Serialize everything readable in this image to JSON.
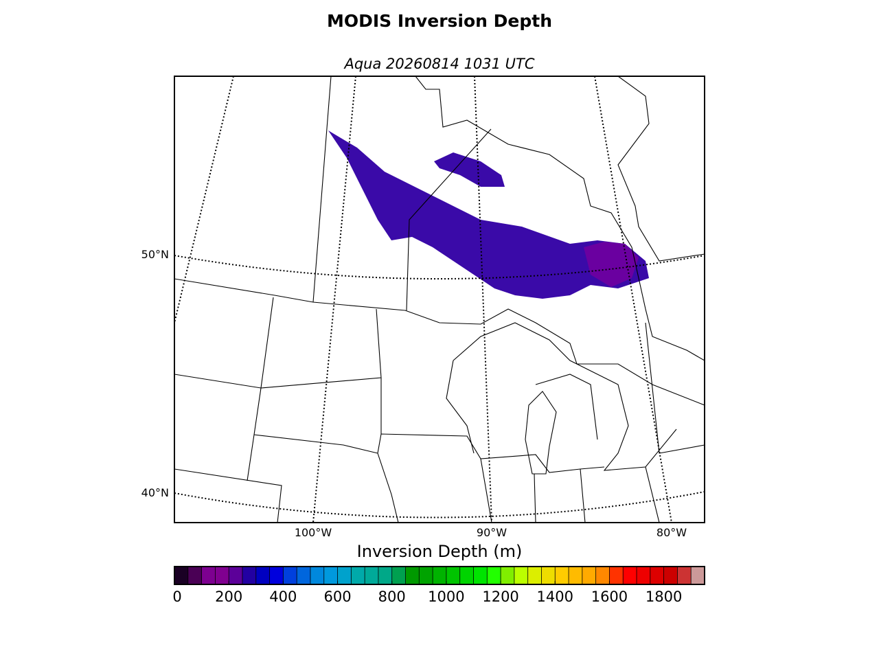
{
  "title": "MODIS Inversion Depth",
  "subtitle": "Aqua 20260814 1031 UTC",
  "map": {
    "lat_labels": [
      "50°N",
      "40°N"
    ],
    "lon_labels": [
      "100°W",
      "90°W",
      "80°W"
    ]
  },
  "colorbar": {
    "label": "Inversion Depth (m)",
    "lim": [
      0,
      1950
    ],
    "ticks": [
      0,
      200,
      400,
      600,
      800,
      1000,
      1200,
      1400,
      1600,
      1800
    ],
    "colors": [
      "#1a0024",
      "#4a0055",
      "#7d0090",
      "#800090",
      "#5c0099",
      "#2200a2",
      "#0000c0",
      "#0000dd",
      "#0040dd",
      "#0066dd",
      "#0088dd",
      "#0099dd",
      "#00a2cc",
      "#00aaaa",
      "#00aa99",
      "#00a888",
      "#00a050",
      "#009900",
      "#00a300",
      "#00b300",
      "#00c400",
      "#00d400",
      "#00e400",
      "#22ff00",
      "#80ee00",
      "#bbff00",
      "#dcee00",
      "#eedd00",
      "#ffcc00",
      "#ffbb00",
      "#ffaa00",
      "#ff8800",
      "#ff3300",
      "#ff0000",
      "#ee0000",
      "#dd0000",
      "#cc0000",
      "#cc3333",
      "#cc9999"
    ]
  }
}
